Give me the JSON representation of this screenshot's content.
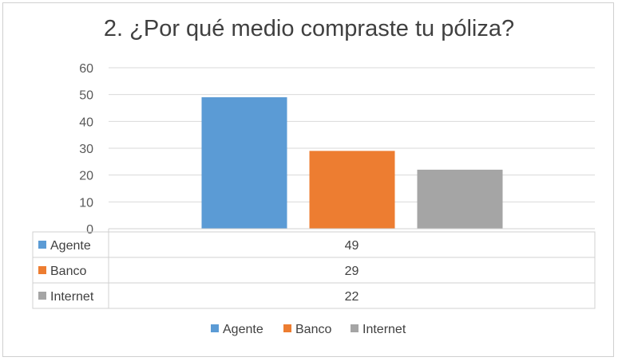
{
  "chart_data": {
    "type": "bar",
    "title": "2. ¿Por qué medio compraste tu póliza?",
    "categories": [
      "Agente",
      "Banco",
      "Internet"
    ],
    "values": [
      49,
      29,
      22
    ],
    "colors": [
      "#5b9bd5",
      "#ed7d31",
      "#a5a5a5"
    ],
    "ylim": [
      0,
      60
    ],
    "yticks": [
      0,
      10,
      20,
      30,
      40,
      50,
      60
    ],
    "grid": true,
    "data_table": true,
    "legend_position": "bottom"
  }
}
